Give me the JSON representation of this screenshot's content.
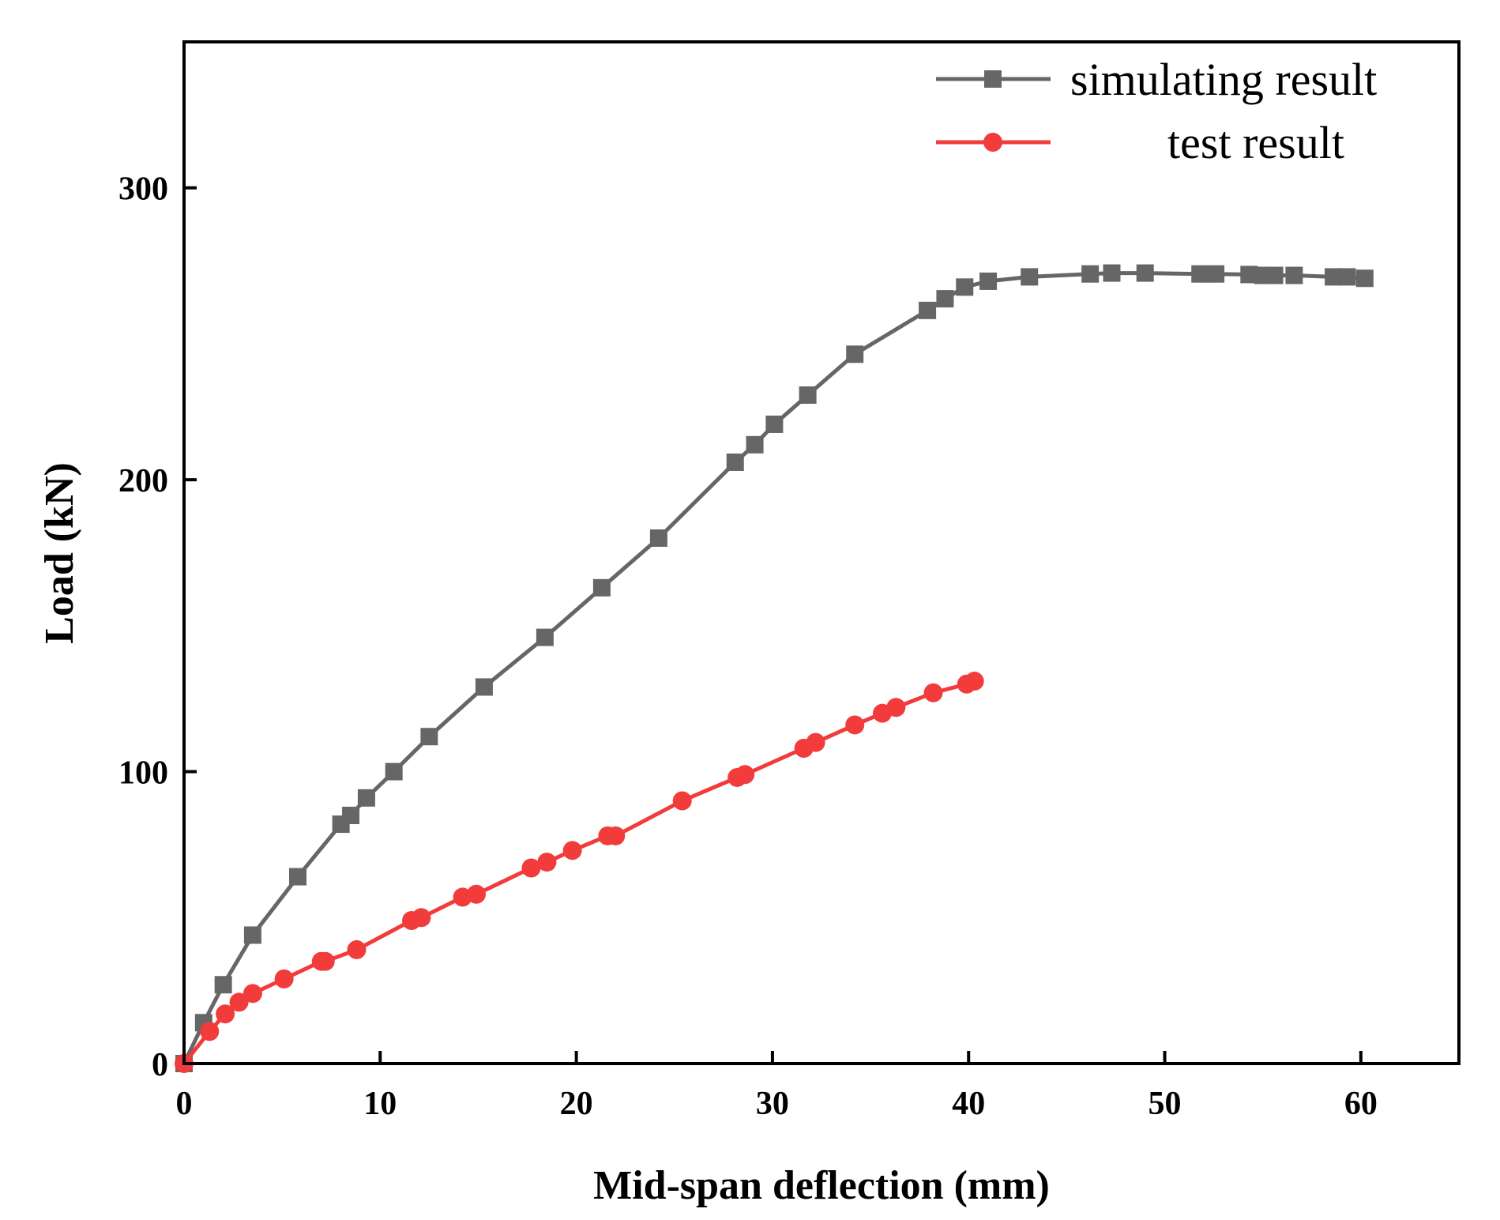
{
  "chart_data": {
    "type": "line",
    "title": "",
    "xlabel": "Mid-span deflection (mm)",
    "ylabel": "Load (kN)",
    "xlim": [
      0,
      65
    ],
    "ylim": [
      0,
      350
    ],
    "xticks": [
      0,
      10,
      20,
      30,
      40,
      50,
      60
    ],
    "yticks": [
      0,
      100,
      200,
      300
    ],
    "xtick_labels": [
      "0",
      "10",
      "20",
      "30",
      "40",
      "50",
      "60"
    ],
    "ytick_labels": [
      "0",
      "100",
      "200",
      "300"
    ],
    "grid": false,
    "legend_position": "top-right",
    "series": [
      {
        "name": "simulating result",
        "color": "#666666",
        "marker": "square",
        "x": [
          0,
          1.0,
          2.0,
          3.5,
          5.8,
          8.0,
          8.5,
          9.3,
          10.7,
          12.5,
          15.3,
          18.4,
          21.3,
          24.2,
          28.1,
          29.1,
          30.1,
          31.8,
          34.2,
          37.9,
          38.8,
          39.8,
          41.0,
          43.1,
          46.2,
          47.3,
          49.0,
          51.8,
          52.6,
          54.3,
          55.0,
          55.6,
          56.6,
          58.6,
          59.3,
          60.2
        ],
        "y": [
          0,
          14,
          27,
          44,
          64,
          82,
          85,
          91,
          100,
          112,
          129,
          146,
          163,
          180,
          206,
          212,
          219,
          229,
          243,
          258,
          262,
          266,
          268,
          269.5,
          270.5,
          270.8,
          270.8,
          270.5,
          270.5,
          270.3,
          270,
          270,
          270,
          269.5,
          269.5,
          269
        ]
      },
      {
        "name": "test result",
        "color": "#f23b3b",
        "marker": "circle",
        "x": [
          0,
          1.3,
          2.1,
          2.8,
          3.5,
          5.1,
          7.0,
          7.2,
          8.8,
          11.6,
          12.1,
          14.2,
          14.9,
          17.7,
          18.5,
          19.8,
          21.6,
          22.0,
          25.4,
          28.2,
          28.6,
          31.6,
          32.2,
          34.2,
          35.6,
          36.3,
          38.2,
          39.9,
          40.3
        ],
        "y": [
          0,
          11,
          17,
          21,
          24,
          29,
          35,
          35,
          39,
          49,
          50,
          57,
          58,
          67,
          69,
          73,
          78,
          78,
          90,
          98,
          99,
          108,
          110,
          116,
          120,
          122,
          127,
          130,
          131
        ]
      }
    ]
  }
}
